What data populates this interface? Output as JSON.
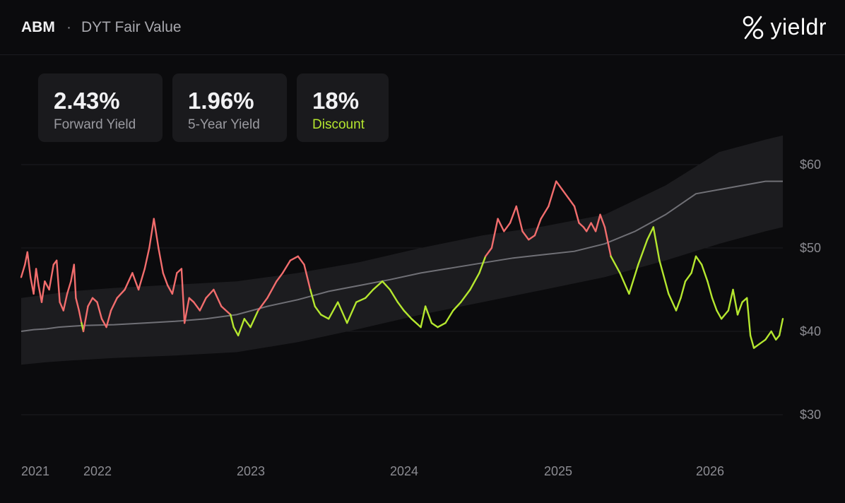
{
  "header": {
    "ticker": "ABM",
    "separator": "·",
    "subtitle": "DYT Fair Value",
    "logo_icon": "percent-icon",
    "logo_text": "yieldr"
  },
  "cards": [
    {
      "value": "2.43%",
      "label": "Forward Yield",
      "label_color": "#9a9aa0"
    },
    {
      "value": "1.96%",
      "label": "5-Year Yield",
      "label_color": "#9a9aa0"
    },
    {
      "value": "18%",
      "label": "Discount",
      "label_color": "#b5e72f"
    }
  ],
  "colors": {
    "background": "#0b0b0d",
    "card": "#1a1a1d",
    "above_fair_value": "#f26d6d",
    "below_fair_value": "#b5e72f",
    "fair_value_line": "#707076",
    "band": "#1c1c1f"
  },
  "chart_data": {
    "type": "line",
    "title": "DYT Fair Value",
    "y_ticks": [
      "$60",
      "$50",
      "$40",
      "$30"
    ],
    "y_tick_values": [
      60,
      50,
      40,
      30
    ],
    "x_ticks": [
      "2021",
      "2022",
      "2023",
      "2024",
      "2025",
      "2026"
    ],
    "x_tick_values": [
      2021.0,
      2022.0,
      2023.0,
      2024.0,
      2025.0,
      2026.0
    ],
    "ylim": [
      25,
      66
    ],
    "xlim": [
      2021.0,
      2026.75
    ],
    "grid": true,
    "series": [
      {
        "role": "price",
        "color_rule": "red above fair value, green below",
        "points": [
          [
            2021.0,
            46.5
          ],
          [
            2021.06,
            48.0
          ],
          [
            2021.1,
            49.5
          ],
          [
            2021.15,
            46.5
          ],
          [
            2021.2,
            44.5
          ],
          [
            2021.24,
            47.5
          ],
          [
            2021.28,
            45.5
          ],
          [
            2021.33,
            43.5
          ],
          [
            2021.38,
            46.0
          ],
          [
            2021.45,
            45.0
          ],
          [
            2021.52,
            48.0
          ],
          [
            2021.57,
            48.5
          ],
          [
            2021.62,
            43.5
          ],
          [
            2021.68,
            42.5
          ],
          [
            2021.74,
            44.5
          ],
          [
            2021.8,
            46.0
          ],
          [
            2021.85,
            48.0
          ],
          [
            2021.88,
            44.0
          ],
          [
            2021.93,
            42.5
          ],
          [
            2021.97,
            41.0
          ],
          [
            2022.0,
            40.0
          ],
          [
            2022.03,
            43.0
          ],
          [
            2022.06,
            44.0
          ],
          [
            2022.09,
            43.5
          ],
          [
            2022.12,
            41.5
          ],
          [
            2022.15,
            40.5
          ],
          [
            2022.18,
            42.5
          ],
          [
            2022.22,
            44.0
          ],
          [
            2022.27,
            45.0
          ],
          [
            2022.32,
            47.0
          ],
          [
            2022.36,
            45.0
          ],
          [
            2022.4,
            47.5
          ],
          [
            2022.43,
            50.0
          ],
          [
            2022.46,
            53.5
          ],
          [
            2022.49,
            50.0
          ],
          [
            2022.52,
            47.0
          ],
          [
            2022.55,
            45.5
          ],
          [
            2022.58,
            44.5
          ],
          [
            2022.61,
            47.0
          ],
          [
            2022.64,
            47.5
          ],
          [
            2022.66,
            41.0
          ],
          [
            2022.69,
            44.0
          ],
          [
            2022.72,
            43.5
          ],
          [
            2022.76,
            42.5
          ],
          [
            2022.8,
            44.0
          ],
          [
            2022.85,
            45.0
          ],
          [
            2022.9,
            43.0
          ],
          [
            2022.96,
            42.0
          ],
          [
            2022.98,
            40.5
          ],
          [
            2023.01,
            39.5
          ],
          [
            2023.05,
            41.5
          ],
          [
            2023.09,
            40.5
          ],
          [
            2023.14,
            42.5
          ],
          [
            2023.2,
            44.0
          ],
          [
            2023.26,
            46.0
          ],
          [
            2023.3,
            47.0
          ],
          [
            2023.35,
            48.5
          ],
          [
            2023.4,
            49.0
          ],
          [
            2023.44,
            48.0
          ],
          [
            2023.48,
            45.0
          ],
          [
            2023.51,
            43.0
          ],
          [
            2023.55,
            42.0
          ],
          [
            2023.6,
            41.5
          ],
          [
            2023.66,
            43.5
          ],
          [
            2023.72,
            41.0
          ],
          [
            2023.78,
            43.5
          ],
          [
            2023.84,
            44.0
          ],
          [
            2023.89,
            45.0
          ],
          [
            2023.95,
            46.0
          ],
          [
            2024.0,
            45.0
          ],
          [
            2024.05,
            43.5
          ],
          [
            2024.09,
            42.5
          ],
          [
            2024.14,
            41.5
          ],
          [
            2024.2,
            40.5
          ],
          [
            2024.23,
            43.0
          ],
          [
            2024.27,
            41.0
          ],
          [
            2024.31,
            40.5
          ],
          [
            2024.36,
            41.0
          ],
          [
            2024.41,
            42.5
          ],
          [
            2024.46,
            43.5
          ],
          [
            2024.52,
            45.0
          ],
          [
            2024.58,
            47.0
          ],
          [
            2024.62,
            49.0
          ],
          [
            2024.66,
            50.0
          ],
          [
            2024.7,
            53.5
          ],
          [
            2024.74,
            52.0
          ],
          [
            2024.78,
            53.0
          ],
          [
            2024.82,
            55.0
          ],
          [
            2024.86,
            52.0
          ],
          [
            2024.9,
            51.0
          ],
          [
            2024.94,
            51.5
          ],
          [
            2024.98,
            53.5
          ],
          [
            2025.03,
            55.0
          ],
          [
            2025.08,
            58.0
          ],
          [
            2025.12,
            57.0
          ],
          [
            2025.16,
            56.0
          ],
          [
            2025.2,
            55.0
          ],
          [
            2025.23,
            53.0
          ],
          [
            2025.26,
            52.5
          ],
          [
            2025.28,
            52.0
          ],
          [
            2025.31,
            53.0
          ],
          [
            2025.34,
            52.0
          ],
          [
            2025.37,
            54.0
          ],
          [
            2025.4,
            52.5
          ],
          [
            2025.44,
            49.0
          ],
          [
            2025.5,
            47.0
          ],
          [
            2025.56,
            44.5
          ],
          [
            2025.62,
            48.0
          ],
          [
            2025.68,
            51.0
          ],
          [
            2025.72,
            52.5
          ],
          [
            2025.76,
            48.5
          ],
          [
            2025.82,
            44.5
          ],
          [
            2025.87,
            42.5
          ],
          [
            2025.9,
            44.0
          ],
          [
            2025.93,
            46.0
          ],
          [
            2025.97,
            47.0
          ],
          [
            2026.0,
            49.0
          ],
          [
            2026.05,
            48.0
          ],
          [
            2026.1,
            46.0
          ],
          [
            2026.14,
            44.0
          ],
          [
            2026.18,
            42.5
          ],
          [
            2026.22,
            41.5
          ],
          [
            2026.28,
            42.5
          ],
          [
            2026.32,
            45.0
          ],
          [
            2026.36,
            42.0
          ],
          [
            2026.4,
            43.5
          ],
          [
            2026.44,
            44.0
          ],
          [
            2026.47,
            39.5
          ],
          [
            2026.5,
            38.0
          ],
          [
            2026.55,
            38.5
          ],
          [
            2026.6,
            39.0
          ],
          [
            2026.65,
            40.0
          ],
          [
            2026.69,
            39.0
          ],
          [
            2026.72,
            39.5
          ],
          [
            2026.75,
            41.5
          ]
        ]
      },
      {
        "role": "fair value",
        "color": "#707076",
        "points": [
          [
            2021.0,
            40.0
          ],
          [
            2021.2,
            40.2
          ],
          [
            2021.4,
            40.3
          ],
          [
            2021.6,
            40.5
          ],
          [
            2021.8,
            40.6
          ],
          [
            2022.0,
            40.7
          ],
          [
            2022.2,
            40.8
          ],
          [
            2022.4,
            41.0
          ],
          [
            2022.6,
            41.2
          ],
          [
            2022.8,
            41.5
          ],
          [
            2023.0,
            42.0
          ],
          [
            2023.2,
            43.0
          ],
          [
            2023.4,
            43.8
          ],
          [
            2023.6,
            44.8
          ],
          [
            2023.8,
            45.5
          ],
          [
            2024.0,
            46.2
          ],
          [
            2024.2,
            47.0
          ],
          [
            2024.4,
            47.6
          ],
          [
            2024.6,
            48.2
          ],
          [
            2024.8,
            48.8
          ],
          [
            2025.0,
            49.2
          ],
          [
            2025.2,
            49.6
          ],
          [
            2025.4,
            50.5
          ],
          [
            2025.6,
            52.0
          ],
          [
            2025.8,
            54.0
          ],
          [
            2026.0,
            56.5
          ],
          [
            2026.2,
            57.0
          ],
          [
            2026.4,
            57.5
          ],
          [
            2026.6,
            58.0
          ],
          [
            2026.75,
            58.0
          ]
        ]
      }
    ],
    "band": {
      "upper": [
        [
          2021.0,
          44.0
        ],
        [
          2021.4,
          44.4
        ],
        [
          2021.8,
          44.8
        ],
        [
          2022.2,
          45.2
        ],
        [
          2022.6,
          45.6
        ],
        [
          2023.0,
          46.0
        ],
        [
          2023.4,
          47.0
        ],
        [
          2023.8,
          48.3
        ],
        [
          2024.2,
          50.0
        ],
        [
          2024.6,
          51.5
        ],
        [
          2025.0,
          52.6
        ],
        [
          2025.4,
          54.0
        ],
        [
          2025.8,
          57.5
        ],
        [
          2026.2,
          61.5
        ],
        [
          2026.6,
          63.0
        ],
        [
          2026.75,
          63.5
        ]
      ],
      "lower": [
        [
          2021.0,
          36.0
        ],
        [
          2021.4,
          36.3
        ],
        [
          2021.8,
          36.5
        ],
        [
          2022.2,
          36.8
        ],
        [
          2022.6,
          37.1
        ],
        [
          2023.0,
          37.5
        ],
        [
          2023.4,
          38.7
        ],
        [
          2023.8,
          40.3
        ],
        [
          2024.2,
          42.0
        ],
        [
          2024.6,
          43.5
        ],
        [
          2025.0,
          45.0
        ],
        [
          2025.4,
          46.5
        ],
        [
          2025.8,
          48.5
        ],
        [
          2026.2,
          50.5
        ],
        [
          2026.6,
          52.0
        ],
        [
          2026.75,
          52.5
        ]
      ]
    }
  }
}
